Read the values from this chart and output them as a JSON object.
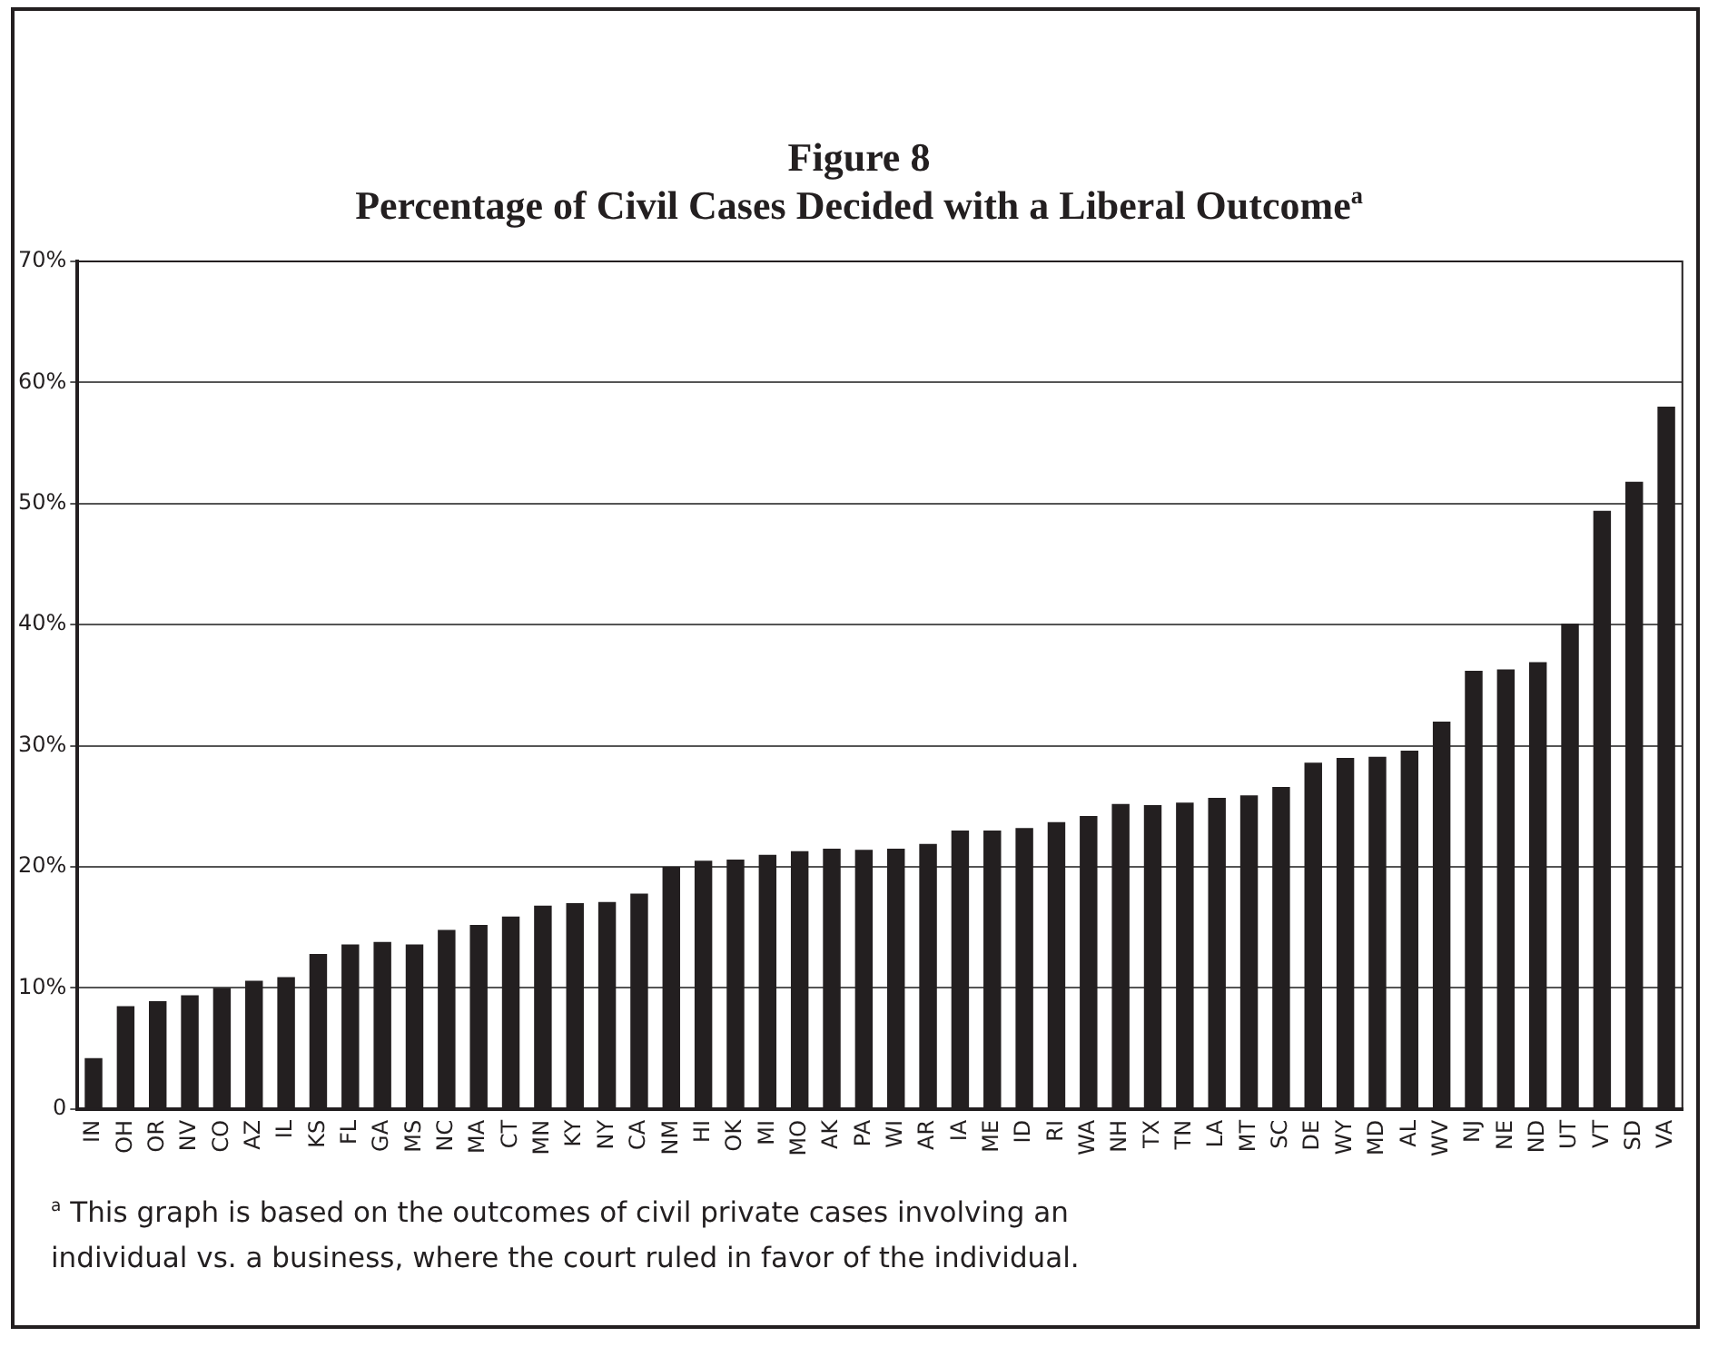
{
  "chart_data": {
    "type": "bar",
    "title": "Figure 8",
    "subtitle": "Percentage of Civil Cases Decided with a Liberal Outcome$^{a}$",
    "categories": [
      "IN",
      "OH",
      "OR",
      "NV",
      "CO",
      "AZ",
      "IL",
      "KS",
      "FL",
      "GA",
      "MS",
      "NC",
      "MA",
      "CT",
      "MN",
      "KY",
      "NY",
      "CA",
      "NM",
      "HI",
      "OK",
      "MI",
      "MO",
      "AK",
      "PA",
      "WI",
      "AR",
      "IA",
      "ME",
      "ID",
      "RI",
      "WA",
      "NH",
      "TX",
      "TN",
      "LA",
      "MT",
      "SC",
      "DE",
      "WY",
      "MD",
      "AL",
      "WV",
      "NJ",
      "NE",
      "ND",
      "UT",
      "VT",
      "SD",
      "VA"
    ],
    "values": [
      4.2,
      8.5,
      8.9,
      9.4,
      10.0,
      10.6,
      10.9,
      12.8,
      13.6,
      13.8,
      13.6,
      14.8,
      15.2,
      15.9,
      16.8,
      17.0,
      17.1,
      17.8,
      20.0,
      20.5,
      20.6,
      21.0,
      21.3,
      21.5,
      21.4,
      21.5,
      21.9,
      23.0,
      23.0,
      23.2,
      23.7,
      24.2,
      25.2,
      25.1,
      25.3,
      25.7,
      25.9,
      26.6,
      28.6,
      29.0,
      29.1,
      29.6,
      32.0,
      36.2,
      36.3,
      36.9,
      40.1,
      49.4,
      51.8,
      58.0
    ],
    "color": "#231f20",
    "ylim": [
      0,
      70
    ],
    "yticks": [
      0,
      {
        "value": 10,
        "label": "10%"
      },
      {
        "value": 20,
        "label": "20%"
      },
      {
        "value": 30,
        "label": "30%"
      },
      {
        "value": 40,
        "label": "40%"
      },
      {
        "value": 50,
        "label": "50%"
      },
      {
        "value": 60,
        "label": "60%"
      },
      {
        "value": 70,
        "label": "70%"
      }
    ],
    "grid": "y",
    "legend": false,
    "annotations": [
      "$^{a}$ This graph is based on the outcomes of civil private cases involving an individual vs. a business, where the court ruled in favor of the individual."
    ]
  }
}
